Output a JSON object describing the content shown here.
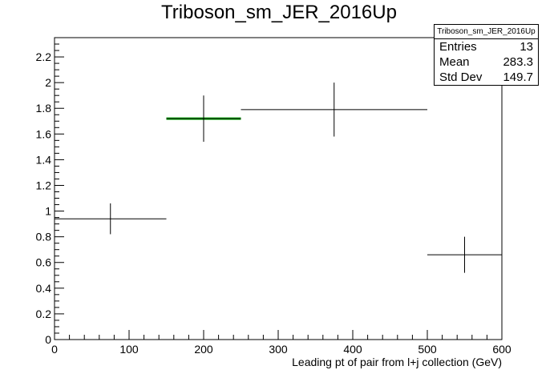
{
  "chart_data": {
    "type": "histogram",
    "title": "Triboson_sm_JER_2016Up",
    "xlabel": "Leading pt of pair from l+j collection (GeV)",
    "ylabel": "",
    "xlim": [
      0,
      600
    ],
    "ylim": [
      0,
      2.35
    ],
    "xticks": [
      0,
      100,
      200,
      300,
      400,
      500,
      600
    ],
    "yticks": [
      0,
      0.2,
      0.4,
      0.6,
      0.8,
      1,
      1.2,
      1.4,
      1.6,
      1.8,
      2,
      2.2
    ],
    "xtick_labels": [
      "0",
      "100",
      "200",
      "300",
      "400",
      "500",
      "600"
    ],
    "ytick_labels": [
      "0",
      "0.2",
      "0.4",
      "0.6",
      "0.8",
      "1",
      "1.2",
      "1.4",
      "1.6",
      "1.8",
      "2",
      "2.2"
    ],
    "bins": [
      {
        "xlow": 0,
        "xhigh": 150,
        "value": 0.94,
        "err": 0.12
      },
      {
        "xlow": 150,
        "xhigh": 250,
        "value": 1.72,
        "err": 0.18
      },
      {
        "xlow": 250,
        "xhigh": 500,
        "value": 1.79,
        "err": 0.21
      },
      {
        "xlow": 500,
        "xhigh": 600,
        "value": 0.66,
        "err": 0.14
      }
    ],
    "highlight_bin_index": 1,
    "colors": {
      "marker": "#000000",
      "highlight": "#00aa00",
      "frame": "#000000"
    },
    "stats": {
      "name": "Triboson_sm_JER_2016Up",
      "entries_label": "Entries",
      "entries": "13",
      "mean_label": "Mean",
      "mean": "283.3",
      "stddev_label": "Std Dev",
      "stddev": "149.7"
    },
    "grid": false,
    "legend": "top-right"
  }
}
